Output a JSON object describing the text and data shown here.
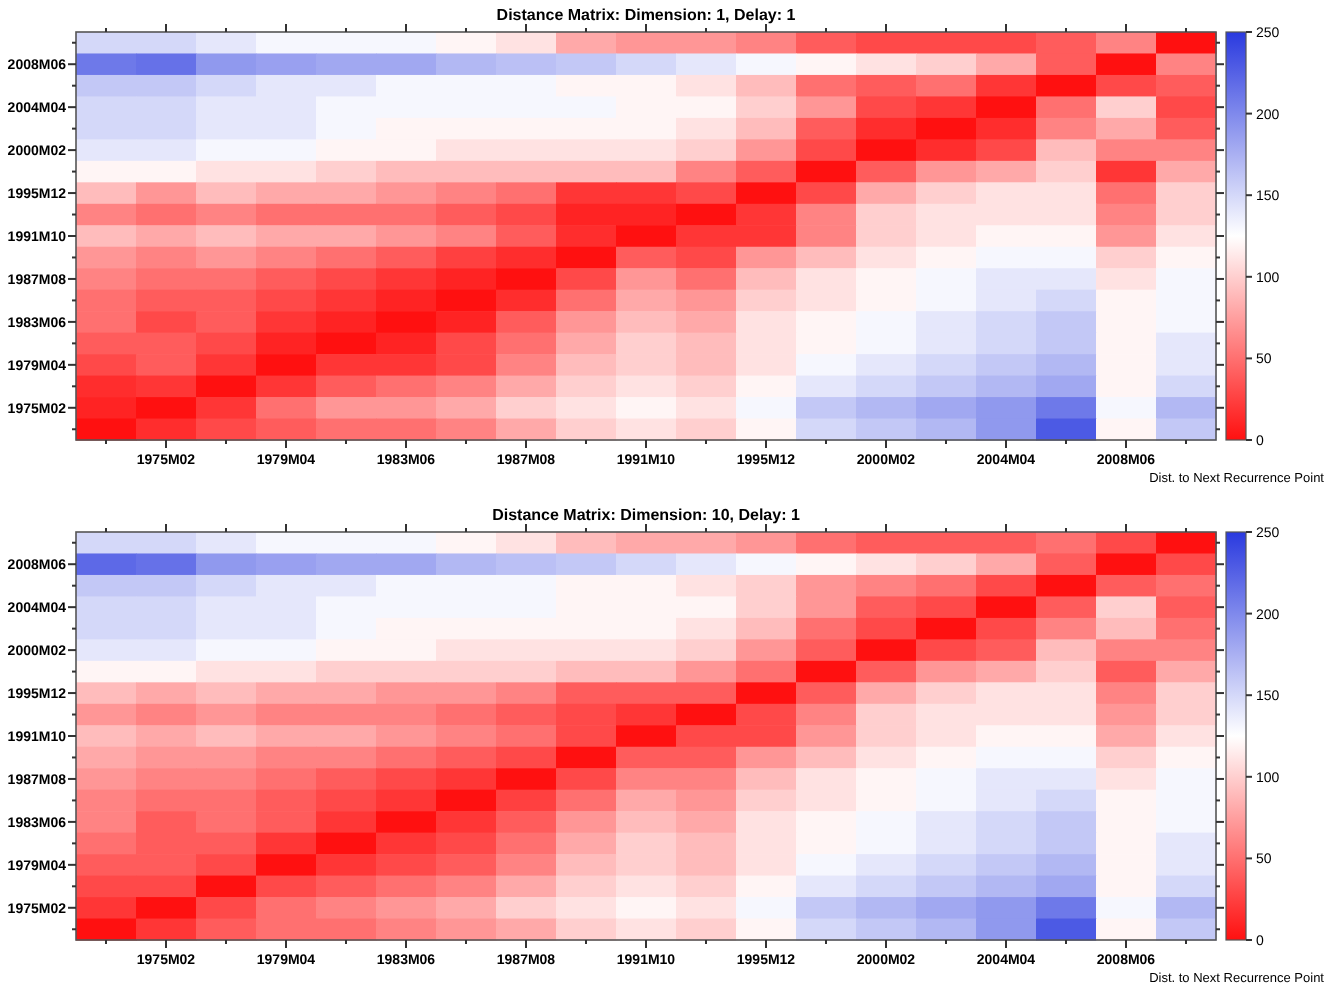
{
  "chart_data": [
    {
      "type": "heatmap",
      "title": "Distance Matrix: Dimension: 1,  Delay: 1",
      "clabel": "Dist. to Next Recurrence Point",
      "clim": [
        0,
        250
      ],
      "cticks": [
        0,
        50,
        100,
        150,
        200,
        250
      ],
      "categories": [
        null,
        "1975M02",
        null,
        "1979M04",
        null,
        "1983M06",
        null,
        "1987M08",
        null,
        "1991M10",
        null,
        "1995M12",
        null,
        "2000M02",
        null,
        "2004M04",
        null,
        "2008M06",
        null
      ],
      "y_categories": [
        null,
        "2008M06",
        null,
        "2004M04",
        null,
        "2000M02",
        null,
        "1995M12",
        null,
        "1991M10",
        null,
        "1987M08",
        null,
        "1983M06",
        null,
        "1979M04",
        null,
        "1975M02",
        null
      ],
      "cells": [
        [
          150,
          150,
          140,
          130,
          130,
          130,
          120,
          110,
          80,
          70,
          70,
          60,
          40,
          30,
          30,
          30,
          40,
          60,
          0
        ],
        [
          210,
          215,
          190,
          185,
          180,
          180,
          170,
          165,
          160,
          150,
          140,
          130,
          120,
          110,
          100,
          80,
          40,
          0,
          60
        ],
        [
          160,
          160,
          150,
          140,
          140,
          130,
          130,
          130,
          120,
          120,
          110,
          90,
          50,
          40,
          50,
          20,
          0,
          30,
          40
        ],
        [
          150,
          150,
          140,
          140,
          130,
          130,
          130,
          130,
          130,
          120,
          120,
          100,
          70,
          30,
          20,
          0,
          50,
          100,
          30
        ],
        [
          150,
          150,
          140,
          140,
          130,
          120,
          120,
          120,
          120,
          120,
          110,
          90,
          40,
          15,
          0,
          15,
          60,
          80,
          40
        ],
        [
          140,
          140,
          130,
          130,
          120,
          120,
          110,
          110,
          110,
          110,
          100,
          70,
          30,
          0,
          15,
          30,
          90,
          60,
          60
        ],
        [
          120,
          120,
          110,
          110,
          100,
          90,
          90,
          90,
          90,
          90,
          60,
          40,
          0,
          40,
          70,
          80,
          100,
          20,
          80
        ],
        [
          90,
          70,
          90,
          80,
          80,
          70,
          60,
          50,
          20,
          20,
          30,
          0,
          30,
          80,
          100,
          110,
          110,
          50,
          100
        ],
        [
          60,
          50,
          60,
          50,
          50,
          50,
          40,
          30,
          10,
          10,
          0,
          20,
          60,
          100,
          110,
          110,
          110,
          60,
          100
        ],
        [
          90,
          80,
          90,
          80,
          80,
          70,
          60,
          40,
          15,
          0,
          20,
          20,
          60,
          100,
          110,
          120,
          120,
          70,
          110
        ],
        [
          70,
          60,
          70,
          60,
          50,
          40,
          25,
          15,
          0,
          40,
          30,
          70,
          90,
          110,
          120,
          130,
          130,
          100,
          120
        ],
        [
          60,
          50,
          50,
          40,
          30,
          20,
          10,
          0,
          30,
          70,
          50,
          90,
          110,
          120,
          130,
          140,
          140,
          110,
          130
        ],
        [
          50,
          40,
          40,
          30,
          20,
          10,
          0,
          15,
          50,
          80,
          70,
          100,
          110,
          120,
          130,
          140,
          150,
          120,
          130
        ],
        [
          50,
          30,
          40,
          20,
          10,
          0,
          10,
          40,
          70,
          90,
          80,
          110,
          120,
          130,
          140,
          150,
          160,
          120,
          130
        ],
        [
          40,
          40,
          30,
          10,
          0,
          10,
          30,
          50,
          80,
          100,
          90,
          110,
          120,
          130,
          140,
          150,
          160,
          120,
          140
        ],
        [
          30,
          40,
          20,
          0,
          20,
          20,
          30,
          60,
          90,
          100,
          90,
          110,
          130,
          140,
          150,
          160,
          170,
          120,
          140
        ],
        [
          15,
          20,
          0,
          20,
          40,
          50,
          60,
          80,
          100,
          110,
          100,
          120,
          140,
          150,
          160,
          170,
          180,
          120,
          150
        ],
        [
          10,
          0,
          20,
          50,
          70,
          70,
          80,
          100,
          110,
          120,
          110,
          130,
          160,
          170,
          180,
          190,
          210,
          130,
          170
        ],
        [
          0,
          15,
          30,
          40,
          50,
          50,
          60,
          80,
          100,
          110,
          100,
          120,
          150,
          160,
          170,
          190,
          230,
          120,
          160
        ]
      ]
    },
    {
      "type": "heatmap",
      "title": "Distance Matrix: Dimension: 10,  Delay: 1",
      "clabel": "Dist. to Next Recurrence Point",
      "clim": [
        0,
        250
      ],
      "cticks": [
        0,
        50,
        100,
        150,
        200,
        250
      ],
      "categories": [
        null,
        "1975M02",
        null,
        "1979M04",
        null,
        "1983M06",
        null,
        "1987M08",
        null,
        "1991M10",
        null,
        "1995M12",
        null,
        "2000M02",
        null,
        "2004M04",
        null,
        "2008M06",
        null
      ],
      "y_categories": [
        null,
        "2008M06",
        null,
        "2004M04",
        null,
        "2000M02",
        null,
        "1995M12",
        null,
        "1991M10",
        null,
        "1987M08",
        null,
        "1983M06",
        null,
        "1979M04",
        null,
        "1975M02",
        null
      ],
      "cells": [
        [
          150,
          150,
          140,
          130,
          130,
          130,
          120,
          110,
          90,
          80,
          80,
          70,
          50,
          40,
          40,
          40,
          50,
          30,
          0
        ],
        [
          220,
          215,
          190,
          185,
          180,
          180,
          170,
          165,
          160,
          150,
          140,
          130,
          120,
          110,
          100,
          80,
          40,
          0,
          30
        ],
        [
          160,
          160,
          150,
          140,
          140,
          130,
          130,
          130,
          120,
          120,
          110,
          100,
          70,
          60,
          50,
          30,
          0,
          40,
          50
        ],
        [
          150,
          150,
          140,
          140,
          130,
          130,
          130,
          130,
          120,
          120,
          120,
          100,
          70,
          40,
          30,
          0,
          40,
          100,
          40
        ],
        [
          150,
          150,
          140,
          140,
          130,
          120,
          120,
          120,
          120,
          120,
          110,
          90,
          50,
          30,
          0,
          30,
          60,
          90,
          50
        ],
        [
          140,
          140,
          130,
          130,
          120,
          120,
          110,
          110,
          110,
          110,
          100,
          70,
          40,
          0,
          30,
          40,
          90,
          60,
          60
        ],
        [
          120,
          120,
          110,
          110,
          100,
          100,
          100,
          100,
          90,
          90,
          70,
          50,
          0,
          40,
          70,
          80,
          100,
          40,
          80
        ],
        [
          90,
          80,
          90,
          80,
          80,
          70,
          70,
          60,
          40,
          40,
          40,
          0,
          40,
          80,
          100,
          110,
          110,
          60,
          100
        ],
        [
          70,
          60,
          70,
          60,
          60,
          60,
          50,
          40,
          30,
          20,
          0,
          30,
          60,
          100,
          110,
          110,
          110,
          70,
          100
        ],
        [
          90,
          80,
          90,
          80,
          80,
          70,
          60,
          50,
          30,
          0,
          30,
          30,
          70,
          100,
          110,
          120,
          120,
          80,
          110
        ],
        [
          80,
          70,
          70,
          60,
          60,
          50,
          40,
          30,
          0,
          40,
          40,
          70,
          90,
          110,
          120,
          130,
          130,
          100,
          120
        ],
        [
          70,
          60,
          60,
          50,
          40,
          30,
          20,
          0,
          30,
          60,
          60,
          90,
          110,
          120,
          130,
          140,
          140,
          110,
          130
        ],
        [
          60,
          50,
          50,
          40,
          30,
          20,
          0,
          25,
          50,
          80,
          70,
          100,
          110,
          120,
          130,
          140,
          150,
          120,
          130
        ],
        [
          60,
          40,
          50,
          40,
          20,
          0,
          20,
          40,
          70,
          90,
          80,
          110,
          120,
          130,
          140,
          150,
          160,
          120,
          130
        ],
        [
          50,
          40,
          40,
          20,
          0,
          20,
          30,
          50,
          80,
          100,
          90,
          110,
          120,
          130,
          140,
          150,
          160,
          120,
          140
        ],
        [
          40,
          40,
          30,
          0,
          20,
          30,
          40,
          60,
          90,
          100,
          90,
          110,
          130,
          140,
          150,
          160,
          170,
          120,
          140
        ],
        [
          30,
          30,
          0,
          30,
          40,
          50,
          60,
          80,
          100,
          110,
          100,
          120,
          140,
          150,
          160,
          170,
          180,
          120,
          150
        ],
        [
          20,
          0,
          30,
          50,
          60,
          70,
          80,
          100,
          110,
          120,
          110,
          130,
          160,
          170,
          180,
          190,
          210,
          130,
          170
        ],
        [
          0,
          20,
          40,
          50,
          50,
          60,
          70,
          80,
          100,
          110,
          100,
          120,
          150,
          160,
          170,
          190,
          230,
          120,
          160
        ]
      ]
    }
  ]
}
